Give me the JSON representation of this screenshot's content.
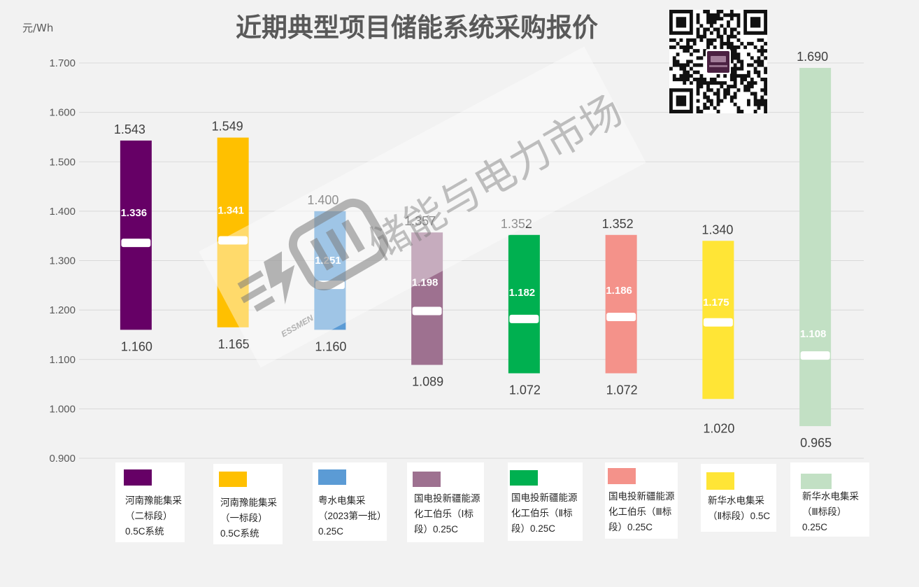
{
  "colors": {
    "background": "#f2f2f2",
    "grid": "#d9d9d9",
    "axis_text": "#595959",
    "value_text": "#404040",
    "avg_marker": "#ffffff",
    "legend_box": "#ffffff"
  },
  "watermark": {
    "text": "储能与电力市场",
    "subtext": "ESSMEN",
    "icon": "essmen-logo-icon"
  },
  "qr_code": {
    "icon": "qr-code-icon"
  },
  "chart_data": {
    "type": "bar",
    "subtype": "floating-range-with-average",
    "title": "近期典型项目储能系统采购报价",
    "ylabel": "元/Wh",
    "ylim": [
      0.9,
      1.7
    ],
    "yticks": [
      "0.900",
      "1.000",
      "1.100",
      "1.200",
      "1.300",
      "1.400",
      "1.500",
      "1.600",
      "1.700"
    ],
    "grid": true,
    "legend_position": "bottom",
    "categories": [
      [
        "河南豫能集采",
        "（二标段）",
        "0.5C系统"
      ],
      [
        "河南豫能集采",
        "（一标段）",
        "0.5C系统"
      ],
      [
        "粤水电集采",
        "（2023第一批）",
        "0.25C"
      ],
      [
        "国电投新疆能源",
        "化工伯乐（Ⅰ标",
        "段）0.25C"
      ],
      [
        "国电投新疆能源",
        "化工伯乐（Ⅱ标",
        "段）0.25C"
      ],
      [
        "国电投新疆能源",
        "化工伯乐（Ⅲ标",
        "段）0.25C"
      ],
      [
        "新华水电集采",
        "（Ⅱ标段）0.5C"
      ],
      [
        "新华水电集采",
        "（Ⅲ标段）",
        "0.25C"
      ]
    ],
    "colors": [
      "#660066",
      "#FFC000",
      "#5B9BD5",
      "#9E7190",
      "#00B050",
      "#F4928A",
      "#FFE536",
      "#C2E0C4"
    ],
    "series": [
      {
        "role": "max",
        "values": [
          1.543,
          1.549,
          1.4,
          1.357,
          1.352,
          1.352,
          1.34,
          1.69
        ]
      },
      {
        "role": "avg",
        "values": [
          1.336,
          1.341,
          1.251,
          1.198,
          1.182,
          1.186,
          1.175,
          1.108
        ]
      },
      {
        "role": "min",
        "values": [
          1.16,
          1.165,
          1.16,
          1.089,
          1.072,
          1.072,
          1.02,
          0.965
        ]
      }
    ]
  }
}
